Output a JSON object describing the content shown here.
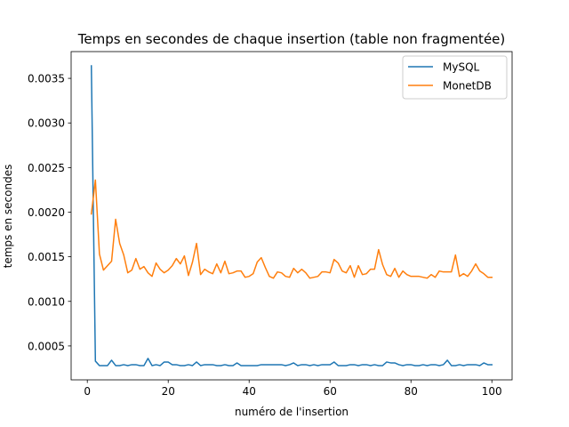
{
  "chart_data": {
    "type": "line",
    "title": "Temps en secondes de chaque insertion (table non fragmentée)",
    "xlabel": "numéro de l'insertion",
    "ylabel": "temps en secondes",
    "xlim": [
      -4,
      105
    ],
    "ylim": [
      0.00012,
      0.0038
    ],
    "xticks": [
      0,
      20,
      40,
      60,
      80,
      100
    ],
    "xtick_labels": [
      "0",
      "20",
      "40",
      "60",
      "80",
      "100"
    ],
    "yticks": [
      0.0005,
      0.001,
      0.0015,
      0.002,
      0.0025,
      0.003,
      0.0035
    ],
    "ytick_labels": [
      "0.0005",
      "0.0010",
      "0.0015",
      "0.0020",
      "0.0025",
      "0.0030",
      "0.0035"
    ],
    "grid": false,
    "legend_position": "top-right",
    "x_start": 1,
    "series": [
      {
        "name": "MySQL",
        "color": "#1f77b4",
        "values": [
          0.00364,
          0.00033,
          0.00028,
          0.00028,
          0.00028,
          0.00034,
          0.00028,
          0.00028,
          0.00029,
          0.00028,
          0.00029,
          0.00029,
          0.00028,
          0.00028,
          0.00036,
          0.00028,
          0.00029,
          0.00028,
          0.00032,
          0.00032,
          0.00029,
          0.00029,
          0.00028,
          0.00028,
          0.00029,
          0.00028,
          0.00032,
          0.00028,
          0.00029,
          0.00029,
          0.00029,
          0.00028,
          0.00028,
          0.00029,
          0.00028,
          0.00028,
          0.00031,
          0.00028,
          0.00028,
          0.00028,
          0.00028,
          0.00028,
          0.00029,
          0.00029,
          0.00029,
          0.00029,
          0.00029,
          0.00029,
          0.00028,
          0.00029,
          0.00031,
          0.00028,
          0.00029,
          0.00029,
          0.00028,
          0.00029,
          0.00028,
          0.00029,
          0.00029,
          0.00029,
          0.00032,
          0.00028,
          0.00028,
          0.00028,
          0.00029,
          0.00029,
          0.00028,
          0.00029,
          0.00029,
          0.00028,
          0.00029,
          0.00028,
          0.00028,
          0.00032,
          0.00031,
          0.00031,
          0.00029,
          0.00028,
          0.00029,
          0.00029,
          0.00028,
          0.00028,
          0.00029,
          0.00028,
          0.00029,
          0.00029,
          0.00028,
          0.00029,
          0.00034,
          0.00028,
          0.00028,
          0.00029,
          0.00028,
          0.00029,
          0.00029,
          0.00029,
          0.00028,
          0.00031,
          0.00029,
          0.00029
        ]
      },
      {
        "name": "MonetDB",
        "color": "#ff7f0e",
        "values": [
          0.00198,
          0.00236,
          0.00153,
          0.00135,
          0.0014,
          0.00145,
          0.00192,
          0.00165,
          0.00152,
          0.00132,
          0.00135,
          0.00148,
          0.00136,
          0.00139,
          0.00132,
          0.00128,
          0.00143,
          0.00136,
          0.00132,
          0.00135,
          0.0014,
          0.00148,
          0.00142,
          0.00151,
          0.00129,
          0.00144,
          0.00165,
          0.0013,
          0.00136,
          0.00133,
          0.00131,
          0.00142,
          0.00132,
          0.00145,
          0.00131,
          0.00132,
          0.00134,
          0.00134,
          0.00127,
          0.00128,
          0.00131,
          0.00144,
          0.00149,
          0.00138,
          0.00128,
          0.00126,
          0.00133,
          0.00132,
          0.00128,
          0.00127,
          0.00137,
          0.00132,
          0.00136,
          0.00132,
          0.00126,
          0.00127,
          0.00128,
          0.00133,
          0.00133,
          0.00132,
          0.00147,
          0.00143,
          0.00134,
          0.00132,
          0.0014,
          0.00127,
          0.0014,
          0.0013,
          0.00131,
          0.00136,
          0.00136,
          0.00158,
          0.00141,
          0.0013,
          0.00128,
          0.00137,
          0.00127,
          0.00134,
          0.0013,
          0.00128,
          0.00128,
          0.00128,
          0.00127,
          0.00126,
          0.0013,
          0.00127,
          0.00134,
          0.00133,
          0.00133,
          0.00133,
          0.00152,
          0.00128,
          0.00131,
          0.00128,
          0.00134,
          0.00142,
          0.00134,
          0.00131,
          0.00127,
          0.00127
        ]
      }
    ]
  }
}
